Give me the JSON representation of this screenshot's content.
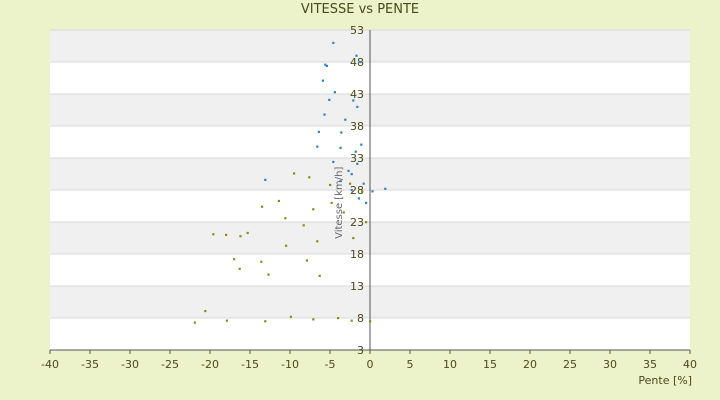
{
  "chart_data": {
    "type": "scatter",
    "title": "VITESSE vs PENTE",
    "xlabel": "Pente [%]",
    "ylabel": "Vitesse [km/h]",
    "xlim": [
      -40,
      40
    ],
    "ylim": [
      3,
      53
    ],
    "x_ticks": [
      "-40",
      "-35",
      "-30",
      "-25",
      "-20",
      "-15",
      "-10",
      "-5",
      "0",
      "5",
      "10",
      "15",
      "20",
      "25",
      "30",
      "35",
      "40"
    ],
    "y_ticks": [
      "3",
      "8",
      "13",
      "18",
      "23",
      "28",
      "33",
      "38",
      "43",
      "48",
      "53"
    ],
    "grid": "horizontal bands",
    "colors": {
      "background": "#ecf2c9",
      "band_light": "#ffffff",
      "band_dark": "#f0f0f0",
      "series_blue": "#2f7fd0",
      "series_olive": "#8a8a1a"
    },
    "series": [
      {
        "color": "#2f7fd0",
        "points": [
          [
            -4.6,
            51.0
          ],
          [
            -5.6,
            47.6
          ],
          [
            -5.4,
            47.4
          ],
          [
            -1.7,
            49.0
          ],
          [
            -1.2,
            48.0
          ],
          [
            -5.9,
            45.1
          ],
          [
            -4.4,
            43.3
          ],
          [
            -5.1,
            42.1
          ],
          [
            -2.1,
            42.0
          ],
          [
            -1.6,
            41.0
          ],
          [
            -5.7,
            39.8
          ],
          [
            -3.1,
            39.0
          ],
          [
            -6.4,
            37.1
          ],
          [
            -3.6,
            37.0
          ],
          [
            -6.6,
            34.8
          ],
          [
            -1.1,
            35.1
          ],
          [
            -1.8,
            34.0
          ],
          [
            -3.7,
            34.6
          ],
          [
            -4.6,
            32.4
          ],
          [
            -1.6,
            32.1
          ],
          [
            -2.7,
            31.0
          ],
          [
            -2.3,
            30.5
          ],
          [
            -13.1,
            29.6
          ],
          [
            -3.7,
            29.4
          ],
          [
            -0.8,
            29.0
          ],
          [
            -2.3,
            28.0
          ],
          [
            0.3,
            27.8
          ],
          [
            1.9,
            28.2
          ],
          [
            -1.4,
            26.7
          ],
          [
            -0.5,
            26.0
          ]
        ]
      },
      {
        "color": "#8a8a1a",
        "points": [
          [
            -9.5,
            30.6
          ],
          [
            -7.6,
            30.0
          ],
          [
            -2.5,
            29.0
          ],
          [
            -5.0,
            28.8
          ],
          [
            -1.0,
            27.8
          ],
          [
            -11.4,
            26.3
          ],
          [
            -4.8,
            26.0
          ],
          [
            -13.5,
            25.4
          ],
          [
            -7.1,
            25.0
          ],
          [
            -3.3,
            24.5
          ],
          [
            -10.6,
            23.6
          ],
          [
            -0.5,
            23.0
          ],
          [
            -8.3,
            22.5
          ],
          [
            -19.6,
            21.1
          ],
          [
            -18.0,
            21.0
          ],
          [
            -16.2,
            20.8
          ],
          [
            -15.3,
            21.3
          ],
          [
            -2.1,
            20.5
          ],
          [
            -6.6,
            20.0
          ],
          [
            -10.5,
            19.3
          ],
          [
            -17.0,
            17.2
          ],
          [
            -7.9,
            17.0
          ],
          [
            -13.6,
            16.8
          ],
          [
            -16.3,
            15.7
          ],
          [
            -12.7,
            14.8
          ],
          [
            -6.3,
            14.6
          ],
          [
            -21.9,
            7.3
          ],
          [
            -20.6,
            9.1
          ],
          [
            -17.9,
            7.6
          ],
          [
            -13.1,
            7.5
          ],
          [
            -9.9,
            8.2
          ],
          [
            -7.1,
            7.8
          ],
          [
            -4.0,
            8.0
          ],
          [
            -2.3,
            7.6
          ],
          [
            0.0,
            7.5
          ]
        ]
      }
    ]
  }
}
